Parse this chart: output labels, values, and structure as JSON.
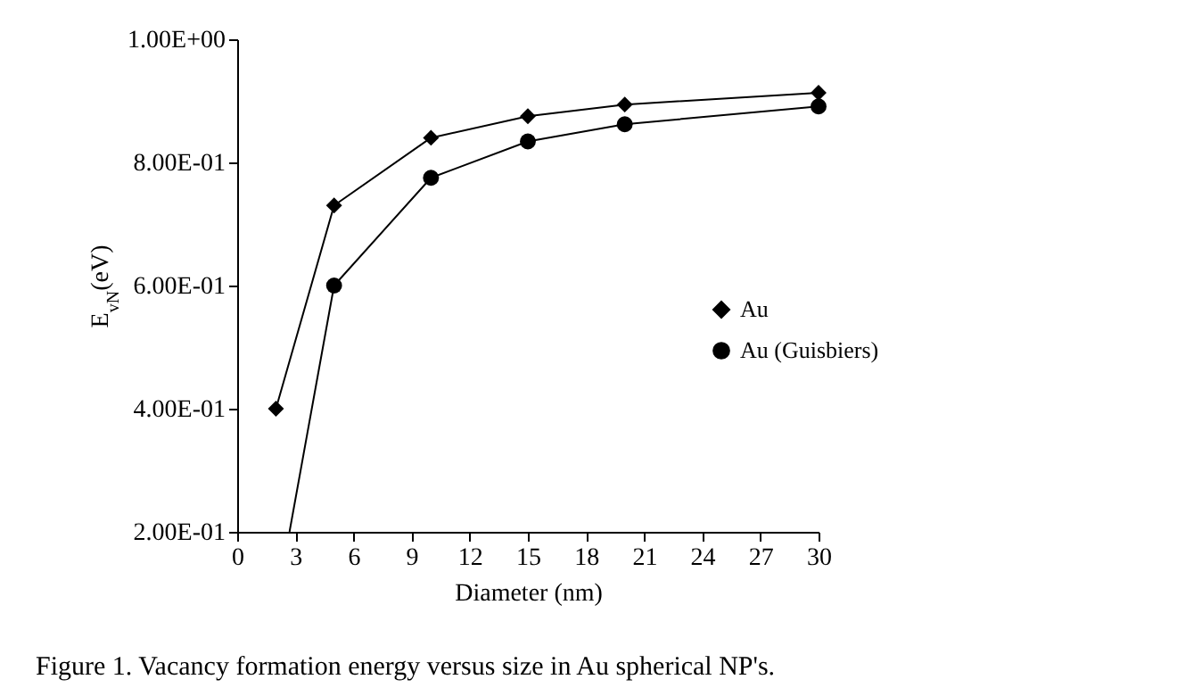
{
  "chart_data": {
    "type": "line",
    "xlabel": "Diameter (nm)",
    "ylabel": "E$_{vN}$(eV)",
    "annotations": [
      "Figure 1. Vacancy formation energy versus size in Au spherical NP's."
    ],
    "xlim": [
      0,
      30
    ],
    "xticks": [
      0,
      3,
      6,
      9,
      12,
      15,
      18,
      21,
      24,
      27,
      30
    ],
    "ylim": [
      0.2,
      1.0
    ],
    "yticks": [
      {
        "value": 0.2,
        "label": "2.00E-01"
      },
      {
        "value": 0.4,
        "label": "4.00E-01"
      },
      {
        "value": 0.6,
        "label": "6.00E-01"
      },
      {
        "value": 0.8,
        "label": "8.00E-01"
      },
      {
        "value": 1.0,
        "label": "1.00E+00"
      }
    ],
    "grid": false,
    "legend": "right",
    "line_style": "solid",
    "series": [
      {
        "name": "Au",
        "color": "#000000",
        "marker": "diamond",
        "x": [
          2,
          5,
          10,
          15,
          20,
          30
        ],
        "values": [
          0.4,
          0.73,
          0.84,
          0.875,
          0.894,
          0.913
        ]
      },
      {
        "name": "Au (Guisbiers)",
        "color": "#000000",
        "marker": "circle",
        "x": [
          2.7,
          5,
          10,
          15,
          20,
          30
        ],
        "values": [
          0.2,
          0.6,
          0.775,
          0.834,
          0.862,
          0.891
        ]
      }
    ]
  }
}
